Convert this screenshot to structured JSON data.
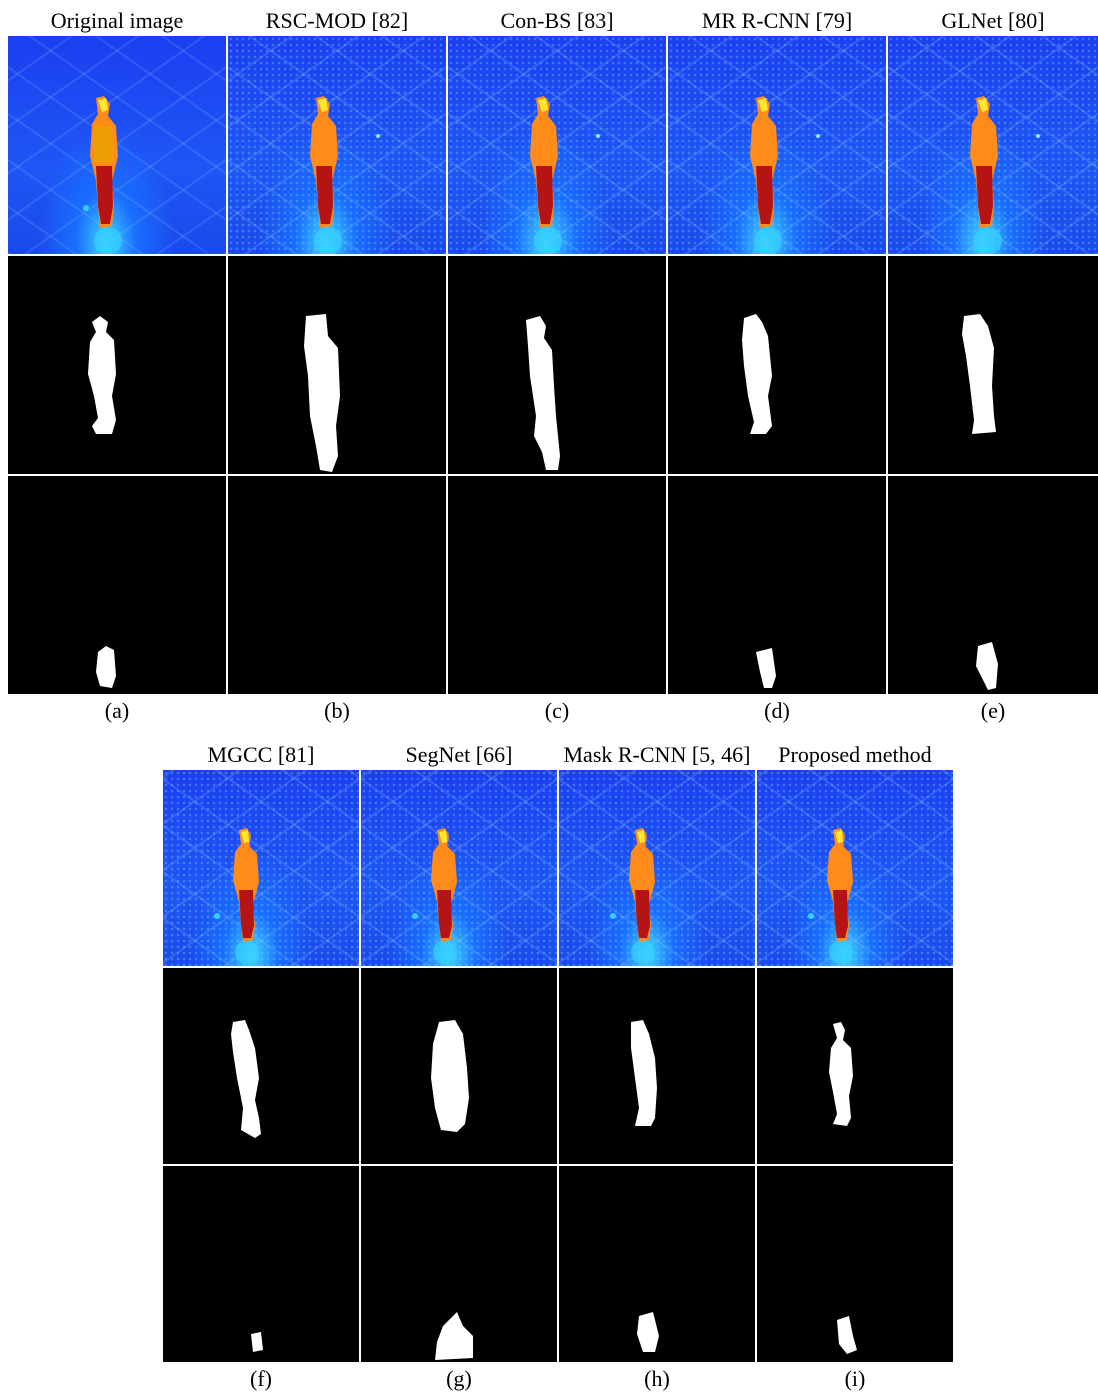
{
  "top_row": {
    "panels": [
      {
        "title": "Original image",
        "caption": "(a)",
        "has_image": true,
        "gt_masks": true
      },
      {
        "title": "RSC-MOD [82]",
        "caption": "(b)",
        "mask2_empty": true
      },
      {
        "title": "Con-BS [83]",
        "caption": "(c)",
        "mask2_empty": true
      },
      {
        "title": "MR R-CNN [79]",
        "caption": "(d)"
      },
      {
        "title": "GLNet [80]",
        "caption": "(e)"
      }
    ]
  },
  "bottom_row": {
    "panels": [
      {
        "title": "MGCC [81]",
        "caption": "(f)"
      },
      {
        "title": "SegNet [66]",
        "caption": "(g)"
      },
      {
        "title": "Mask R-CNN [5, 46]",
        "caption": "(h)"
      },
      {
        "title": "Proposed method",
        "caption": "(i)"
      }
    ]
  },
  "colors": {
    "thermal_background": "#1e56f5",
    "mask_background": "#000000",
    "mask_foreground": "#ffffff",
    "separator": "#ffffff"
  }
}
